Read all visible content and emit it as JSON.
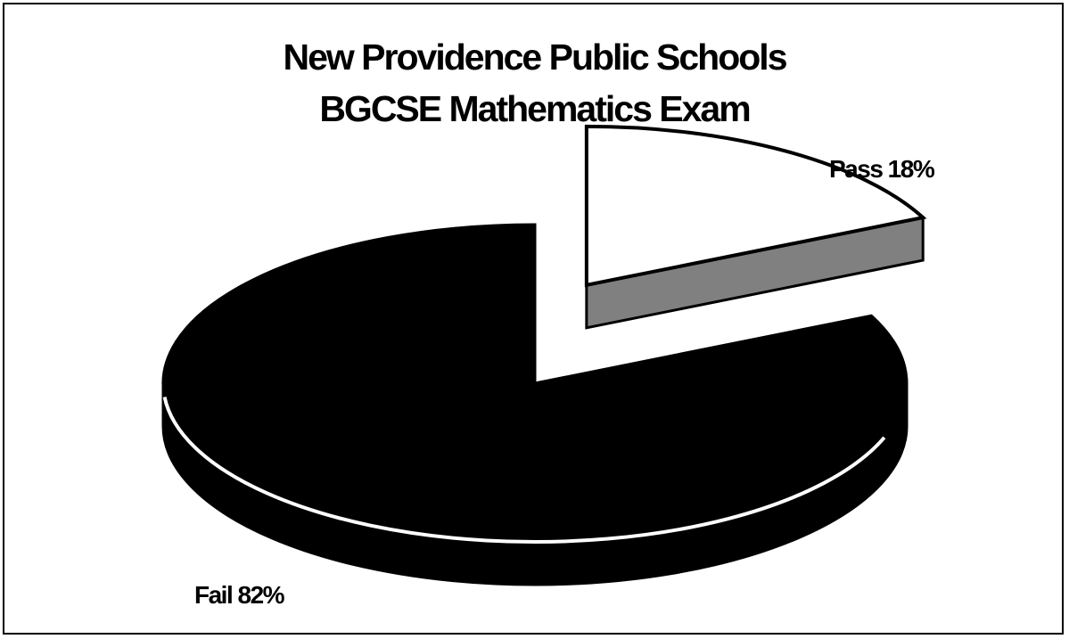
{
  "chart_data": {
    "type": "pie",
    "title": [
      "New Providence Public Schools",
      "BGCSE Mathematics Exam"
    ],
    "slices": [
      {
        "label": "Pass 18%",
        "category": "Pass",
        "value": 18,
        "color": "#ffffff",
        "side_color": "#808080",
        "exploded": true
      },
      {
        "label": "Fail 82%",
        "category": "Fail",
        "value": 82,
        "color": "#000000",
        "side_color": "#000000",
        "exploded": false
      }
    ],
    "three_d": true,
    "legend": "none",
    "border": true
  }
}
